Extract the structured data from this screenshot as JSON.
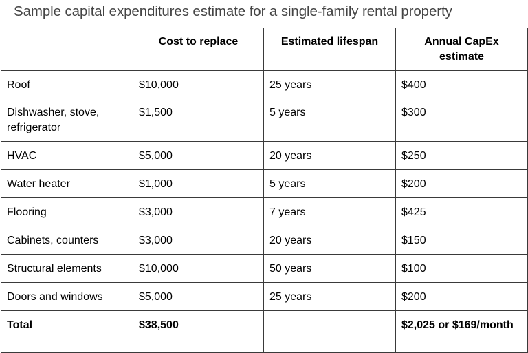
{
  "title": "Sample capital expenditures estimate for a single-family rental property",
  "table": {
    "headers": [
      "",
      "Cost to replace",
      "Estimated lifespan",
      "Annual CapEx estimate"
    ],
    "rows": [
      [
        "Roof",
        "$10,000",
        "25 years",
        "$400"
      ],
      [
        "Dishwasher, stove, refrigerator",
        "$1,500",
        "5 years",
        "$300"
      ],
      [
        "HVAC",
        "$5,000",
        "20 years",
        "$250"
      ],
      [
        "Water heater",
        "$1,000",
        "5 years",
        "$200"
      ],
      [
        "Flooring",
        "$3,000",
        "7 years",
        "$425"
      ],
      [
        "Cabinets, counters",
        "$3,000",
        "20 years",
        "$150"
      ],
      [
        "Structural elements",
        "$10,000",
        "50 years",
        "$100"
      ],
      [
        "Doors and windows",
        "$5,000",
        "25 years",
        "$200"
      ]
    ],
    "total": [
      "Total",
      "$38,500",
      "",
      "$2,025 or $169/month"
    ]
  },
  "colors": {
    "title_text": "#444444",
    "border": "#3a3a3a"
  }
}
